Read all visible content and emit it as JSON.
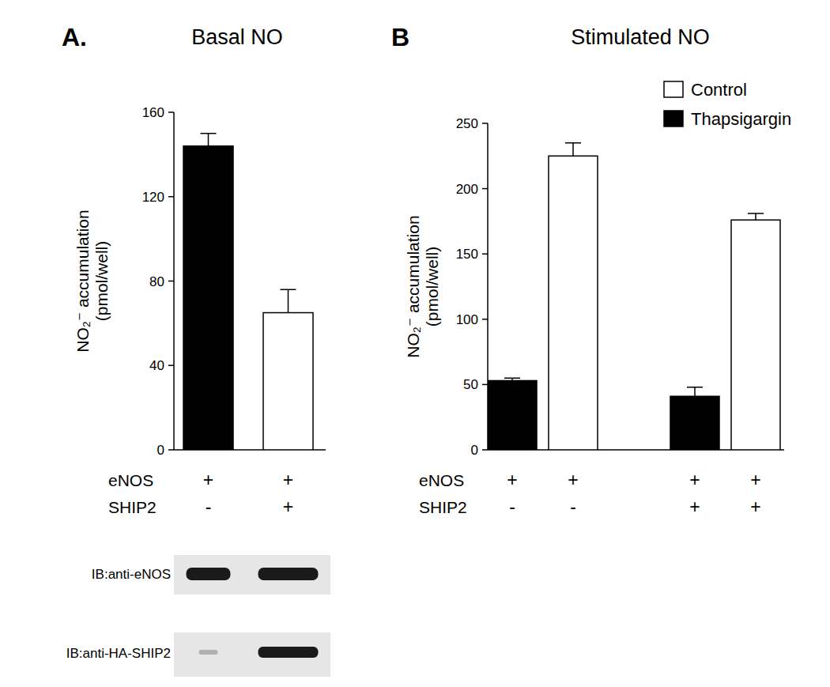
{
  "chart_data": [
    {
      "type": "bar",
      "panel_label": "A.",
      "title": "Basal NO",
      "y_label": [
        "NO₂⁻ accumulation",
        "(pmol/well)"
      ],
      "row_labels": [
        "eNOS",
        "SHIP2"
      ],
      "categories": [
        [
          "+",
          "-"
        ],
        [
          "+",
          "+"
        ]
      ],
      "values": [
        144,
        65
      ],
      "errors": [
        6,
        11
      ],
      "colors": [
        "#000000",
        "#ffffff"
      ],
      "ylim": [
        0,
        160
      ],
      "yticks": [
        0,
        40,
        80,
        120,
        160
      ],
      "blots": [
        "IB:anti-eNOS",
        "IB:anti-HA-SHIP2"
      ]
    },
    {
      "type": "bar",
      "panel_label": "B",
      "title": "Stimulated NO",
      "y_label": [
        "NO₂⁻ accumulation",
        "(pmol/well)"
      ],
      "row_labels": [
        "eNOS",
        "SHIP2"
      ],
      "categories": [
        [
          "+",
          "-"
        ],
        [
          "+",
          "-"
        ],
        [
          "+",
          "+"
        ],
        [
          "+",
          "+"
        ]
      ],
      "series": [
        {
          "name": "Control",
          "color": "#ffffff",
          "values": [
            null,
            225,
            null,
            176
          ],
          "errors": [
            null,
            10,
            null,
            5
          ]
        },
        {
          "name": "Thapsigargin",
          "color": "#000000",
          "values": [
            53,
            null,
            41,
            null
          ],
          "errors": [
            2,
            null,
            7,
            null
          ]
        }
      ],
      "legend": "top-right",
      "ylim": [
        0,
        250
      ],
      "yticks": [
        0,
        50,
        100,
        150,
        200,
        250
      ]
    }
  ]
}
